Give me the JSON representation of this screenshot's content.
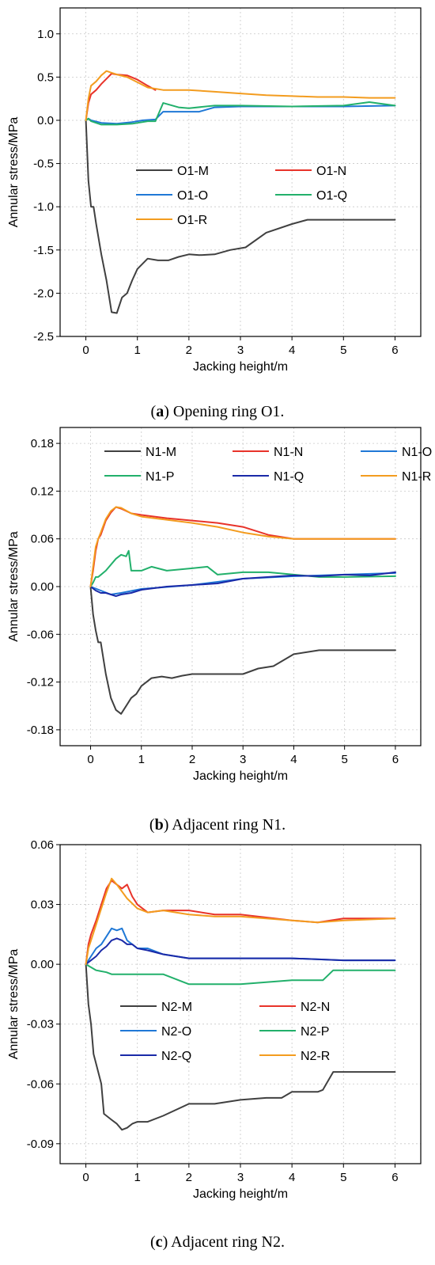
{
  "chart_data": [
    {
      "type": "line",
      "panel_letter": "a",
      "caption": "Opening ring O1.",
      "xlabel": "Jacking height/m",
      "ylabel": "Annular stress/MPa",
      "xlim": [
        -0.5,
        6.5
      ],
      "ylim": [
        -2.5,
        1.3
      ],
      "xticks": [
        0,
        1,
        2,
        3,
        4,
        5,
        6
      ],
      "yticks": [
        -2.5,
        -2.0,
        -1.5,
        -1.0,
        -0.5,
        0.0,
        0.5,
        1.0
      ],
      "ytick_labels": [
        "-2.5",
        "-2.0",
        "-1.5",
        "-1.0",
        "-0.5",
        "0.0",
        "0.5",
        "1.0"
      ],
      "legend": {
        "position": "center-left",
        "columns": 2
      },
      "series": [
        {
          "name": "O1-M",
          "color": "#404040",
          "x": [
            0,
            0.05,
            0.1,
            0.15,
            0.2,
            0.3,
            0.4,
            0.5,
            0.6,
            0.7,
            0.8,
            0.9,
            1.0,
            1.2,
            1.4,
            1.6,
            1.8,
            2.0,
            2.2,
            2.5,
            2.8,
            3.1,
            3.5,
            4.0,
            4.3,
            5.0,
            6.0
          ],
          "y": [
            0,
            -0.7,
            -1.0,
            -1.0,
            -1.2,
            -1.55,
            -1.85,
            -2.22,
            -2.23,
            -2.05,
            -2.0,
            -1.85,
            -1.72,
            -1.6,
            -1.62,
            -1.62,
            -1.58,
            -1.55,
            -1.56,
            -1.55,
            -1.5,
            -1.47,
            -1.3,
            -1.2,
            -1.15,
            -1.15,
            -1.15
          ]
        },
        {
          "name": "O1-N",
          "color": "#e8332a",
          "x": [
            0,
            0.05,
            0.1,
            0.2,
            0.3,
            0.4,
            0.5,
            0.6,
            0.8,
            1.0,
            1.2,
            1.35
          ],
          "y": [
            0,
            0.2,
            0.3,
            0.35,
            0.42,
            0.48,
            0.54,
            0.53,
            0.52,
            0.47,
            0.4,
            0.35
          ]
        },
        {
          "name": "O1-O",
          "color": "#1f78d6",
          "x": [
            0,
            0.05,
            0.1,
            0.3,
            0.6,
            0.9,
            1.1,
            1.35,
            1.5,
            2.0,
            2.2,
            2.5,
            3.0,
            4.0,
            5.0,
            6.0
          ],
          "y": [
            0.0,
            0.02,
            0.0,
            -0.03,
            -0.04,
            -0.02,
            0.0,
            0.01,
            0.1,
            0.1,
            0.1,
            0.15,
            0.16,
            0.16,
            0.16,
            0.17
          ]
        },
        {
          "name": "O1-Q",
          "color": "#22b06b",
          "x": [
            0,
            0.05,
            0.1,
            0.3,
            0.6,
            0.9,
            1.2,
            1.35,
            1.5,
            1.8,
            2.0,
            2.5,
            3.0,
            4.0,
            5.0,
            5.5,
            6.0
          ],
          "y": [
            0.0,
            0.02,
            -0.01,
            -0.05,
            -0.05,
            -0.04,
            -0.01,
            -0.01,
            0.2,
            0.15,
            0.14,
            0.17,
            0.17,
            0.16,
            0.17,
            0.21,
            0.17
          ]
        },
        {
          "name": "O1-R",
          "color": "#f39c1f",
          "x": [
            0,
            0.05,
            0.1,
            0.2,
            0.3,
            0.4,
            0.5,
            0.6,
            0.8,
            1.0,
            1.2,
            1.5,
            2.0,
            2.5,
            3.0,
            3.5,
            4.0,
            4.5,
            5.0,
            5.5,
            6.0
          ],
          "y": [
            0,
            0.25,
            0.4,
            0.45,
            0.52,
            0.57,
            0.55,
            0.53,
            0.5,
            0.44,
            0.38,
            0.35,
            0.35,
            0.33,
            0.31,
            0.29,
            0.28,
            0.27,
            0.27,
            0.26,
            0.26
          ]
        }
      ]
    },
    {
      "type": "line",
      "panel_letter": "b",
      "caption": "Adjacent ring N1.",
      "xlabel": "Jacking height/m",
      "ylabel": "Annular stress/MPa",
      "xlim": [
        -0.6,
        6.5
      ],
      "ylim": [
        -0.2,
        0.2
      ],
      "xticks": [
        0,
        1,
        2,
        3,
        4,
        5,
        6
      ],
      "yticks": [
        -0.18,
        -0.12,
        -0.06,
        0.0,
        0.06,
        0.12,
        0.18
      ],
      "ytick_labels": [
        "-0.18",
        "-0.12",
        "-0.06",
        "0.00",
        "0.06",
        "0.12",
        "0.18"
      ],
      "legend": {
        "position": "top",
        "columns": 3
      },
      "series": [
        {
          "name": "N1-M",
          "color": "#404040",
          "x": [
            0,
            0.05,
            0.1,
            0.15,
            0.2,
            0.3,
            0.4,
            0.5,
            0.6,
            0.7,
            0.8,
            0.9,
            1.0,
            1.2,
            1.4,
            1.6,
            1.8,
            2.0,
            2.5,
            3.0,
            3.3,
            3.6,
            4.0,
            4.5,
            5.0,
            6.0
          ],
          "y": [
            0,
            -0.035,
            -0.055,
            -0.07,
            -0.07,
            -0.11,
            -0.14,
            -0.155,
            -0.16,
            -0.15,
            -0.14,
            -0.135,
            -0.125,
            -0.115,
            -0.113,
            -0.115,
            -0.112,
            -0.11,
            -0.11,
            -0.11,
            -0.103,
            -0.1,
            -0.085,
            -0.08,
            -0.08,
            -0.08
          ]
        },
        {
          "name": "N1-N",
          "color": "#e8332a",
          "x": [
            0,
            0.05,
            0.1,
            0.15,
            0.2,
            0.3,
            0.4,
            0.5,
            0.6,
            0.8,
            1.0,
            1.5,
            2.0,
            2.5,
            3.0,
            3.5,
            4.0,
            5.0,
            6.0
          ],
          "y": [
            0,
            0.02,
            0.045,
            0.06,
            0.065,
            0.083,
            0.093,
            0.1,
            0.098,
            0.092,
            0.09,
            0.086,
            0.083,
            0.08,
            0.075,
            0.065,
            0.06,
            0.06,
            0.06
          ]
        },
        {
          "name": "N1-O",
          "color": "#1f78d6",
          "x": [
            0,
            0.2,
            0.4,
            0.6,
            1.0,
            2.0,
            3.0,
            4.0,
            5.0,
            6.0
          ],
          "y": [
            0.0,
            -0.005,
            -0.01,
            -0.008,
            -0.003,
            0.002,
            0.01,
            0.013,
            0.015,
            0.017
          ]
        },
        {
          "name": "N1-P",
          "color": "#22b06b",
          "x": [
            0,
            0.05,
            0.1,
            0.15,
            0.3,
            0.5,
            0.6,
            0.7,
            0.75,
            0.8,
            0.9,
            1.0,
            1.2,
            1.5,
            2.0,
            2.3,
            2.5,
            3.0,
            3.5,
            4.0,
            4.5,
            5.0,
            6.0
          ],
          "y": [
            0,
            0.005,
            0.012,
            0.012,
            0.02,
            0.035,
            0.04,
            0.038,
            0.045,
            0.02,
            0.02,
            0.02,
            0.025,
            0.02,
            0.023,
            0.025,
            0.015,
            0.018,
            0.018,
            0.015,
            0.012,
            0.012,
            0.013
          ]
        },
        {
          "name": "N1-Q",
          "color": "#1a2aa8",
          "x": [
            0,
            0.1,
            0.2,
            0.3,
            0.4,
            0.5,
            0.6,
            0.8,
            1.0,
            1.5,
            2.0,
            2.5,
            3.0,
            3.5,
            4.0,
            4.5,
            5.0,
            5.5,
            6.0
          ],
          "y": [
            0,
            -0.005,
            -0.008,
            -0.008,
            -0.01,
            -0.012,
            -0.01,
            -0.008,
            -0.004,
            0.0,
            0.002,
            0.004,
            0.01,
            0.012,
            0.014,
            0.013,
            0.015,
            0.014,
            0.018
          ]
        },
        {
          "name": "N1-R",
          "color": "#f39c1f",
          "x": [
            0,
            0.05,
            0.1,
            0.15,
            0.2,
            0.3,
            0.4,
            0.5,
            0.6,
            0.8,
            1.0,
            1.5,
            2.0,
            2.5,
            3.0,
            3.5,
            4.0,
            5.0,
            6.0
          ],
          "y": [
            0,
            0.025,
            0.05,
            0.06,
            0.068,
            0.085,
            0.095,
            0.1,
            0.099,
            0.092,
            0.088,
            0.084,
            0.08,
            0.075,
            0.068,
            0.063,
            0.06,
            0.06,
            0.06
          ]
        }
      ]
    },
    {
      "type": "line",
      "panel_letter": "c",
      "caption": "Adjacent ring N2.",
      "xlabel": "Jacking height/m",
      "ylabel": "Annular stress/MPa",
      "xlim": [
        -0.5,
        6.5
      ],
      "ylim": [
        -0.1,
        0.06
      ],
      "xticks": [
        0,
        1,
        2,
        3,
        4,
        5,
        6
      ],
      "yticks": [
        -0.09,
        -0.06,
        -0.03,
        0.0,
        0.03,
        0.06
      ],
      "ytick_labels": [
        "-0.09",
        "-0.06",
        "-0.03",
        "0.00",
        "0.03",
        "0.06"
      ],
      "legend": {
        "position": "center-left",
        "columns": 2
      },
      "series": [
        {
          "name": "N2-M",
          "color": "#404040",
          "x": [
            0,
            0.05,
            0.1,
            0.15,
            0.2,
            0.3,
            0.35,
            0.4,
            0.5,
            0.6,
            0.7,
            0.8,
            0.9,
            1.0,
            1.2,
            1.5,
            2.0,
            2.5,
            3.0,
            3.5,
            3.8,
            4.0,
            4.5,
            4.6,
            4.8,
            5.0,
            6.0
          ],
          "y": [
            0,
            -0.02,
            -0.03,
            -0.045,
            -0.05,
            -0.06,
            -0.075,
            -0.076,
            -0.078,
            -0.08,
            -0.083,
            -0.082,
            -0.08,
            -0.079,
            -0.079,
            -0.076,
            -0.07,
            -0.07,
            -0.068,
            -0.067,
            -0.067,
            -0.064,
            -0.064,
            -0.063,
            -0.054,
            -0.054,
            -0.054
          ]
        },
        {
          "name": "N2-N",
          "color": "#e8332a",
          "x": [
            0,
            0.05,
            0.1,
            0.2,
            0.3,
            0.4,
            0.5,
            0.6,
            0.7,
            0.8,
            0.9,
            1.0,
            1.2,
            1.5,
            2.0,
            2.5,
            3.0,
            4.0,
            4.5,
            5.0,
            6.0
          ],
          "y": [
            0,
            0.01,
            0.015,
            0.022,
            0.03,
            0.038,
            0.042,
            0.04,
            0.038,
            0.04,
            0.034,
            0.03,
            0.026,
            0.027,
            0.027,
            0.025,
            0.025,
            0.022,
            0.021,
            0.023,
            0.023
          ]
        },
        {
          "name": "N2-O",
          "color": "#1f78d6",
          "x": [
            0,
            0.1,
            0.2,
            0.3,
            0.4,
            0.5,
            0.6,
            0.7,
            0.8,
            0.9,
            1.0,
            1.2,
            1.5,
            2.0,
            3.0,
            4.0,
            5.0,
            6.0
          ],
          "y": [
            0,
            0.004,
            0.008,
            0.01,
            0.014,
            0.018,
            0.017,
            0.018,
            0.012,
            0.01,
            0.008,
            0.008,
            0.005,
            0.003,
            0.003,
            0.003,
            0.002,
            0.002
          ]
        },
        {
          "name": "N2-P",
          "color": "#22b06b",
          "x": [
            0,
            0.2,
            0.4,
            0.5,
            1.0,
            1.5,
            2.0,
            2.5,
            3.0,
            4.0,
            4.6,
            4.8,
            5.0,
            6.0
          ],
          "y": [
            0,
            -0.003,
            -0.004,
            -0.005,
            -0.005,
            -0.005,
            -0.01,
            -0.01,
            -0.01,
            -0.008,
            -0.008,
            -0.003,
            -0.003,
            -0.003
          ]
        },
        {
          "name": "N2-Q",
          "color": "#1a2aa8",
          "x": [
            0,
            0.1,
            0.2,
            0.3,
            0.4,
            0.5,
            0.6,
            0.7,
            0.8,
            0.9,
            1.0,
            1.2,
            1.5,
            2.0,
            3.0,
            4.0,
            5.0,
            6.0
          ],
          "y": [
            0,
            0.002,
            0.004,
            0.007,
            0.009,
            0.012,
            0.013,
            0.012,
            0.01,
            0.01,
            0.008,
            0.007,
            0.005,
            0.003,
            0.003,
            0.003,
            0.002,
            0.002
          ]
        },
        {
          "name": "N2-R",
          "color": "#f39c1f",
          "x": [
            0,
            0.05,
            0.1,
            0.2,
            0.3,
            0.4,
            0.5,
            0.6,
            0.8,
            1.0,
            1.2,
            1.5,
            2.0,
            2.5,
            3.0,
            3.5,
            4.0,
            4.5,
            5.0,
            6.0
          ],
          "y": [
            0,
            0.008,
            0.012,
            0.02,
            0.028,
            0.036,
            0.043,
            0.04,
            0.033,
            0.028,
            0.026,
            0.027,
            0.025,
            0.024,
            0.024,
            0.023,
            0.022,
            0.021,
            0.022,
            0.023
          ]
        }
      ]
    }
  ]
}
